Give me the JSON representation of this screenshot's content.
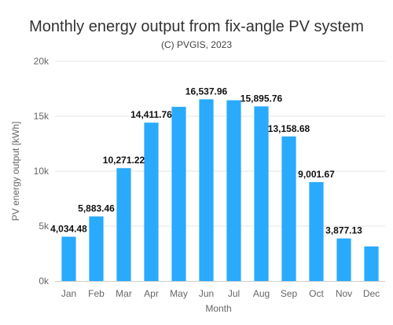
{
  "chart_data": {
    "type": "bar",
    "title": "Monthly energy output from fix-angle PV system",
    "subtitle": "(C) PVGIS, 2023",
    "xlabel": "Month",
    "ylabel": "PV energy output [kWh]",
    "categories": [
      "Jan",
      "Feb",
      "Mar",
      "Apr",
      "May",
      "Jun",
      "Jul",
      "Aug",
      "Sep",
      "Oct",
      "Nov",
      "Dec"
    ],
    "values": [
      4034.48,
      5883.46,
      10271.22,
      14411.76,
      15850,
      16537.96,
      16450,
      15895.76,
      13158.68,
      9001.67,
      3877.13,
      3150
    ],
    "data_labels": [
      "4,034.48",
      "5,883.46",
      "10,271.22",
      "14,411.76",
      "",
      "16,537.96",
      "",
      "15,895.76",
      "13,158.68",
      "9,001.67",
      "3,877.13",
      ""
    ],
    "ylim": [
      0,
      20000
    ],
    "yticks": [
      0,
      5000,
      10000,
      15000,
      20000
    ],
    "ytick_labels": [
      "0k",
      "5k",
      "10k",
      "15k",
      "20k"
    ],
    "grid": true,
    "legend": "none",
    "bar_color": "#29aafc"
  }
}
